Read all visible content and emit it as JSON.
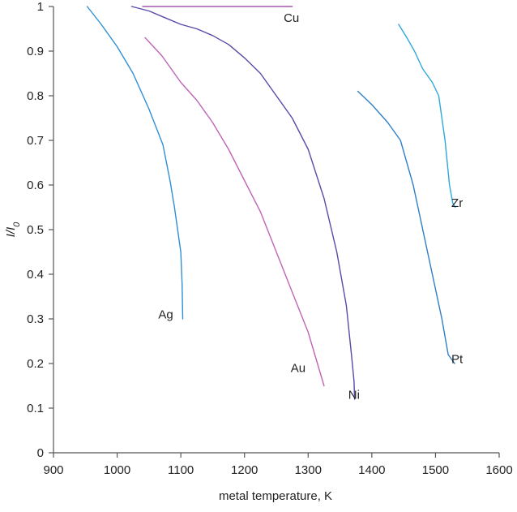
{
  "chart_data": {
    "type": "line",
    "title": "",
    "xlabel": "metal temperature, K",
    "ylabel": "I/I",
    "ylabel_subscript": "0",
    "xlim": [
      900,
      1600
    ],
    "ylim": [
      0,
      1
    ],
    "xticks": [
      900,
      1000,
      1100,
      1200,
      1300,
      1400,
      1500,
      1600
    ],
    "yticks": [
      0,
      0.1,
      0.2,
      0.3,
      0.4,
      0.5,
      0.6,
      0.7,
      0.8,
      0.9,
      1
    ],
    "xtick_labels": [
      "900",
      "1000",
      "1100",
      "1200",
      "1300",
      "1400",
      "1500",
      "1600"
    ],
    "ytick_labels": [
      "0",
      "0.1",
      "0.2",
      "0.3",
      "0.4",
      "0.5",
      "0.6",
      "0.7",
      "0.8",
      "0.9",
      "1"
    ],
    "grid": false,
    "legend": "none",
    "series": [
      {
        "name": "Ag",
        "color": "#2f8fd6",
        "x": [
          953,
          975,
          1000,
          1025,
          1050,
          1072,
          1083,
          1090,
          1095,
          1100,
          1102,
          1103
        ],
        "y": [
          1.0,
          0.96,
          0.91,
          0.85,
          0.77,
          0.69,
          0.61,
          0.55,
          0.5,
          0.45,
          0.38,
          0.3
        ]
      },
      {
        "name": "Cu",
        "color": "#a755b0",
        "x": [
          1040,
          1100,
          1150,
          1200,
          1250,
          1275
        ],
        "y": [
          1.0,
          1.0,
          1.0,
          1.0,
          1.0,
          1.0
        ]
      },
      {
        "name": "Au",
        "color": "#c064b5",
        "x": [
          1044,
          1070,
          1100,
          1125,
          1150,
          1175,
          1200,
          1225,
          1250,
          1275,
          1300,
          1325
        ],
        "y": [
          0.93,
          0.89,
          0.83,
          0.79,
          0.74,
          0.68,
          0.61,
          0.54,
          0.45,
          0.36,
          0.27,
          0.15
        ]
      },
      {
        "name": "Ni",
        "color": "#5a4aa8",
        "x": [
          1023,
          1050,
          1075,
          1100,
          1125,
          1150,
          1175,
          1200,
          1225,
          1250,
          1275,
          1300,
          1325,
          1345,
          1360,
          1368,
          1372,
          1373
        ],
        "y": [
          1.0,
          0.99,
          0.975,
          0.96,
          0.95,
          0.935,
          0.915,
          0.885,
          0.85,
          0.8,
          0.75,
          0.68,
          0.57,
          0.45,
          0.33,
          0.22,
          0.16,
          0.12
        ]
      },
      {
        "name": "Pt",
        "color": "#2f7fc8",
        "x": [
          1378,
          1400,
          1425,
          1445,
          1465,
          1480,
          1495,
          1510,
          1520,
          1530
        ],
        "y": [
          0.81,
          0.78,
          0.74,
          0.7,
          0.6,
          0.5,
          0.4,
          0.3,
          0.22,
          0.2
        ]
      },
      {
        "name": "Zr",
        "color": "#2fa8dc",
        "x": [
          1442,
          1455,
          1467,
          1480,
          1495,
          1505,
          1515,
          1522,
          1527,
          1531
        ],
        "y": [
          0.96,
          0.93,
          0.9,
          0.86,
          0.83,
          0.8,
          0.7,
          0.6,
          0.56,
          0.55
        ]
      }
    ],
    "label_anchors": [
      {
        "series": "Ag",
        "x": 1088,
        "y": 0.31
      },
      {
        "series": "Cu",
        "x": 1286,
        "y": 0.975
      },
      {
        "series": "Au",
        "x": 1296,
        "y": 0.19
      },
      {
        "series": "Ni",
        "x": 1381,
        "y": 0.13
      },
      {
        "series": "Pt",
        "x": 1543,
        "y": 0.21
      },
      {
        "series": "Zr",
        "x": 1543,
        "y": 0.56
      }
    ]
  }
}
